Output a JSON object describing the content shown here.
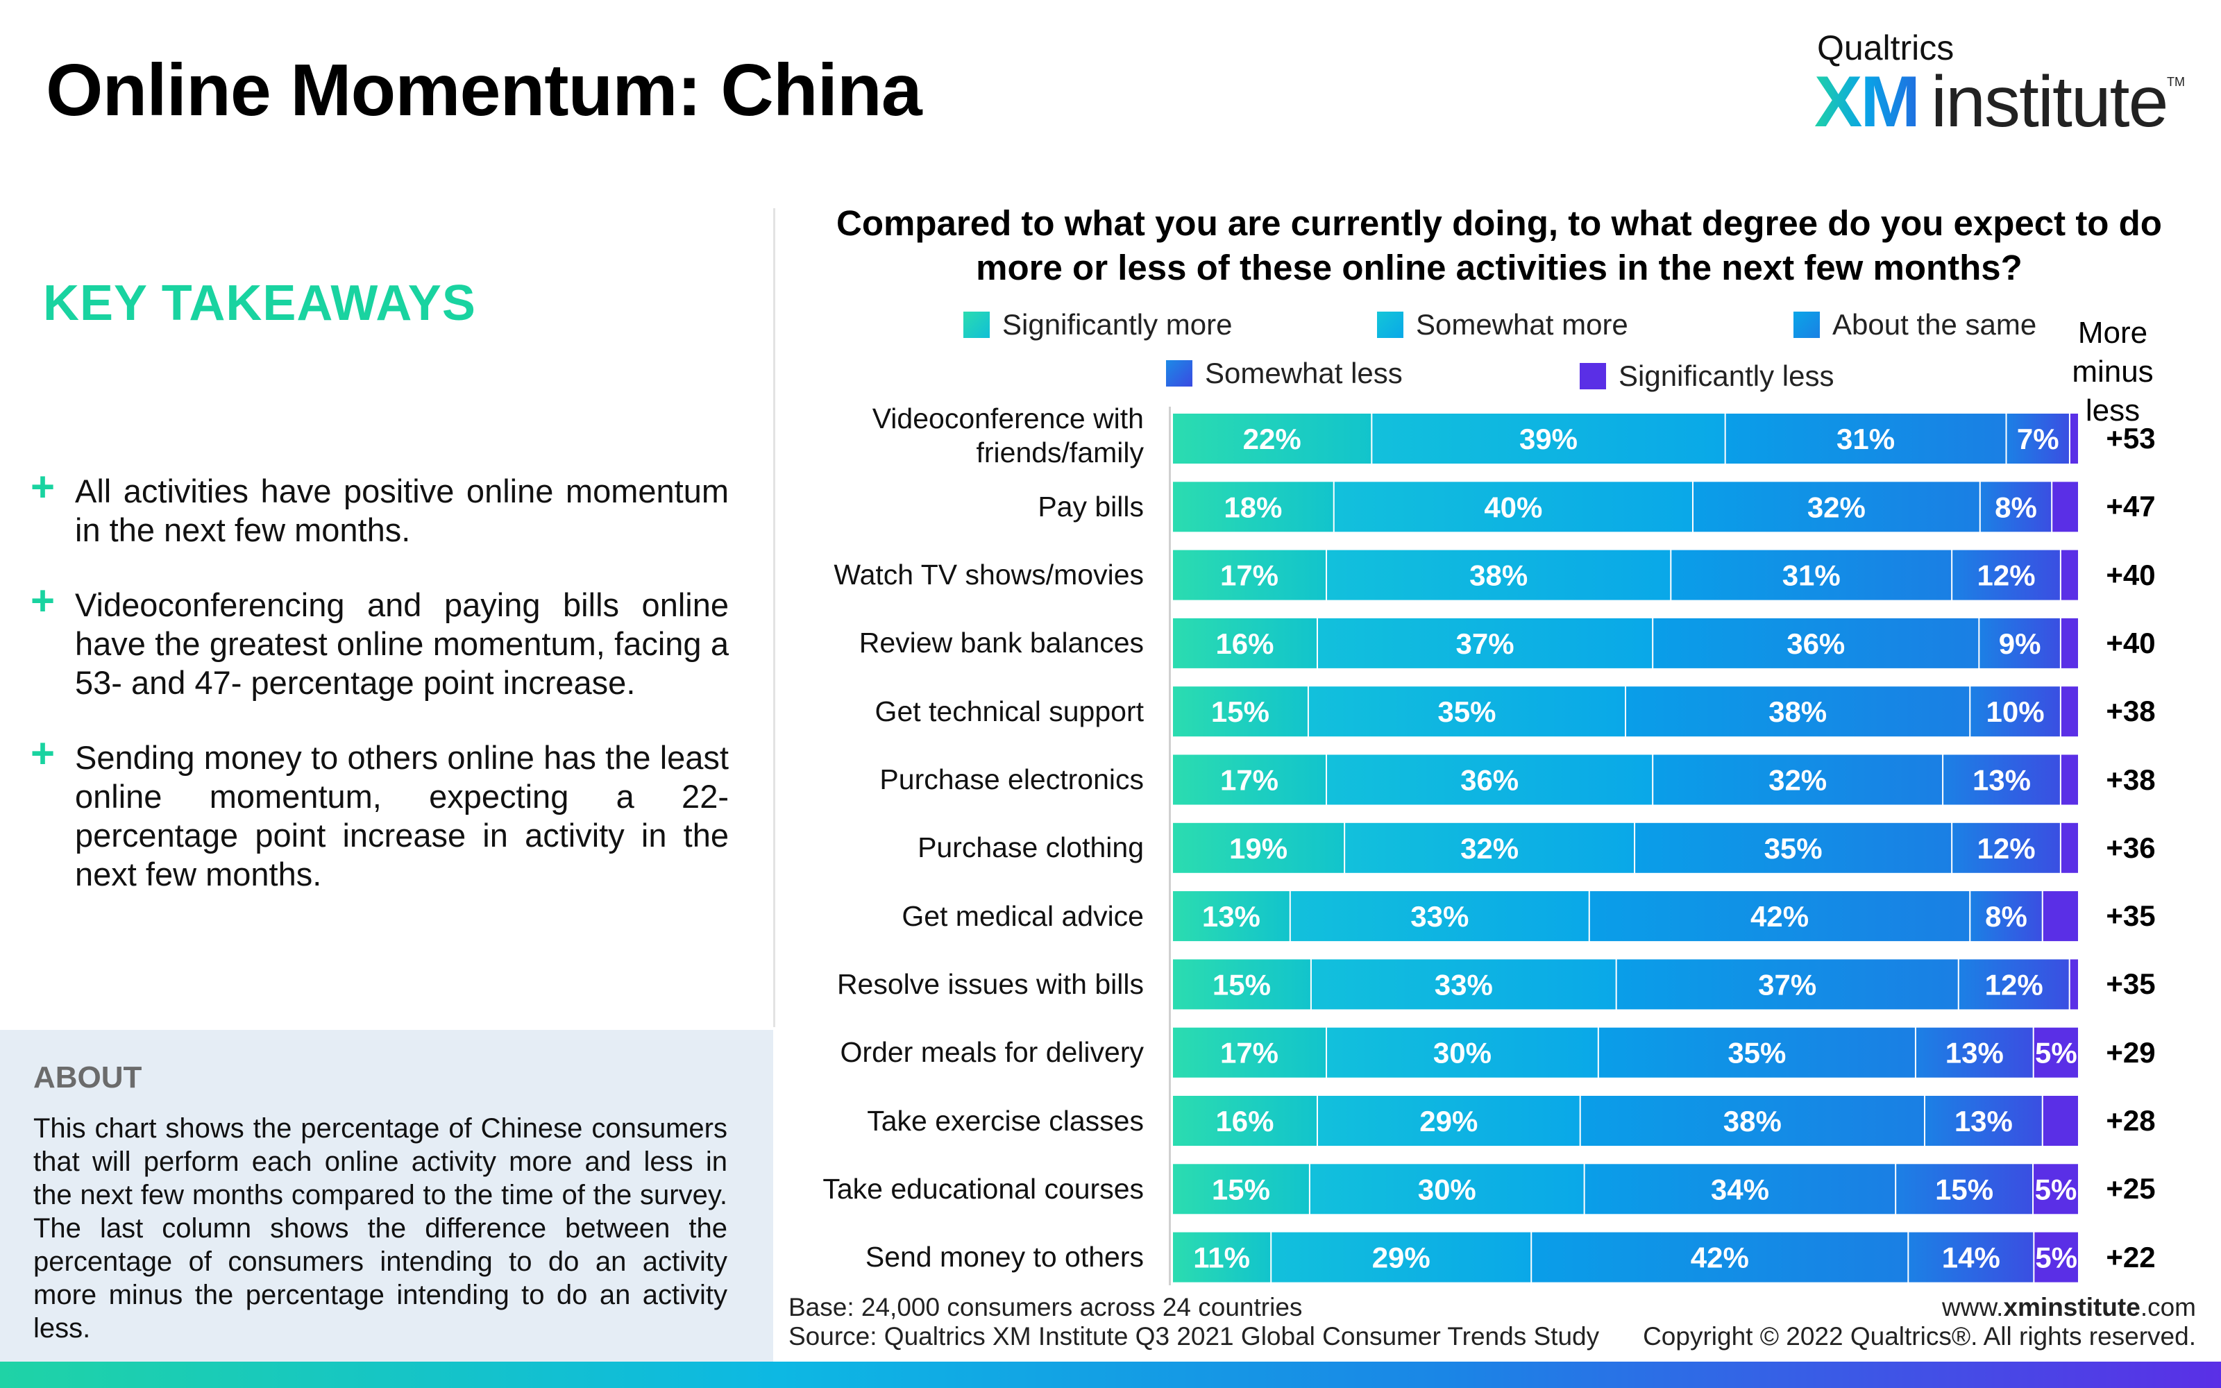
{
  "page": {
    "title": "Online Momentum: China",
    "logo": {
      "brand": "Qualtrics",
      "xm": "XM",
      "institute": "institute",
      "tm": "TM"
    }
  },
  "key_takeaways": {
    "heading": "KEY TAKEAWAYS",
    "items": [
      "All activities have positive online momentum in the next few months.",
      "Videoconferencing and paying bills online have the greatest online momentum, facing a 53- and 47- percentage point increase.",
      "Sending money to others online has the least online momentum, expecting a 22-percentage point increase in activity in the next few months."
    ]
  },
  "about": {
    "heading": "ABOUT",
    "text": "This chart shows the percentage of Chinese consumers that will perform each online activity more and less in the next few months compared to the time of the survey. The last column shows the difference between the percentage of consumers intending to do an activity more minus the percentage intending to do an activity less."
  },
  "footer": {
    "base": "Base: 24,000 consumers across 24 countries",
    "source": "Source: Qualtrics XM Institute Q3 2021 Global Consumer Trends Study",
    "url_prefix": "www.",
    "url_bold": "xminstitute",
    "url_suffix": ".com",
    "copyright": "Copyright © 2022 Qualtrics®. All rights reserved."
  },
  "colors": {
    "accent": "#19d3a0",
    "significantly_more": "#22d3ac",
    "somewhat_more": "#0cb7e3",
    "about_same": "#1593e6",
    "somewhat_less": "#2f5fe3",
    "significantly_less": "#5a2fe6"
  },
  "chart_data": {
    "type": "bar",
    "orientation": "horizontal-stacked-100",
    "title": "Compared to what you are currently doing, to what degree do you expect to do more or less of these online activities in the next few months?",
    "net_column_label": "More minus less",
    "net_column_label_lines": [
      "More",
      "minus less"
    ],
    "legend": [
      "Significantly more",
      "Somewhat more",
      "About the same",
      "Somewhat less",
      "Significantly less"
    ],
    "categories": [
      "Videoconference with friends/family",
      "Pay bills",
      "Watch TV shows/movies",
      "Review bank balances",
      "Get technical support",
      "Purchase electronics",
      "Purchase clothing",
      "Get medical advice",
      "Resolve issues with bills",
      "Order meals for delivery",
      "Take exercise classes",
      "Take educational courses",
      "Send money to others"
    ],
    "series": [
      {
        "name": "Significantly more",
        "values": [
          22,
          18,
          17,
          16,
          15,
          17,
          19,
          13,
          15,
          17,
          16,
          15,
          11
        ]
      },
      {
        "name": "Somewhat more",
        "values": [
          39,
          40,
          38,
          37,
          35,
          36,
          32,
          33,
          33,
          30,
          29,
          30,
          29
        ]
      },
      {
        "name": "About the same",
        "values": [
          31,
          32,
          31,
          36,
          38,
          32,
          35,
          42,
          37,
          35,
          38,
          34,
          42
        ]
      },
      {
        "name": "Somewhat less",
        "values": [
          7,
          8,
          12,
          9,
          10,
          13,
          12,
          8,
          12,
          13,
          13,
          15,
          14
        ]
      },
      {
        "name": "Significantly less",
        "values": [
          1,
          3,
          2,
          2,
          2,
          2,
          2,
          4,
          1,
          5,
          4,
          5,
          5
        ]
      }
    ],
    "net": [
      "+53",
      "+47",
      "+40",
      "+40",
      "+38",
      "+38",
      "+36",
      "+35",
      "+35",
      "+29",
      "+28",
      "+25",
      "+22"
    ]
  }
}
